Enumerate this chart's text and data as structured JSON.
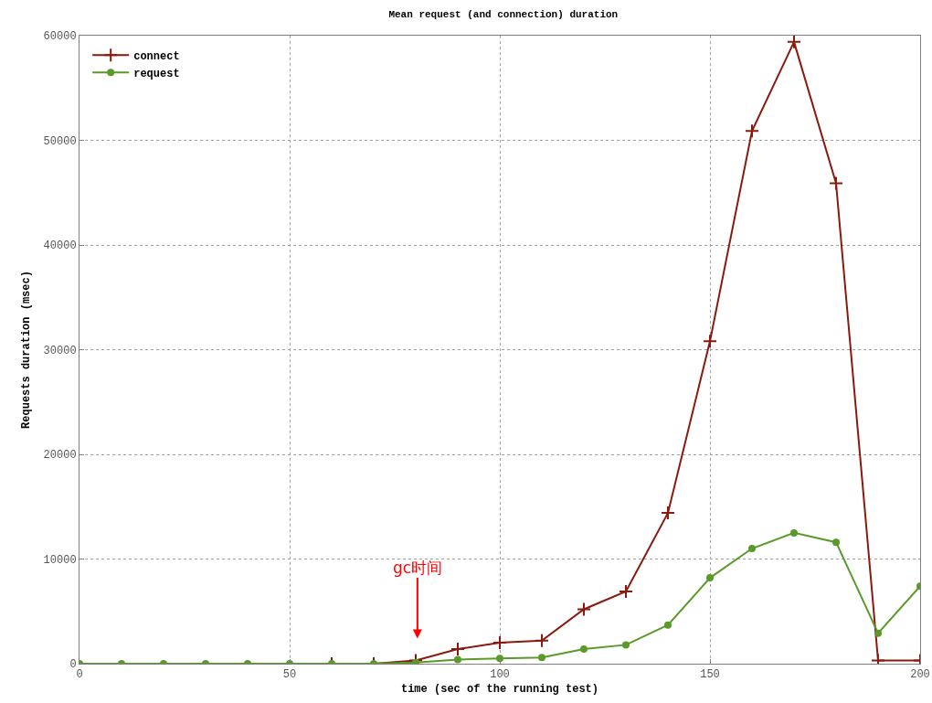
{
  "chart_data": {
    "type": "line",
    "title": "Mean request (and connection) duration",
    "xlabel": "time (sec of the running test)",
    "ylabel": "Requests duration (msec)",
    "x": [
      0,
      10,
      20,
      30,
      40,
      50,
      60,
      70,
      80,
      90,
      100,
      110,
      120,
      130,
      140,
      150,
      160,
      170,
      180,
      190,
      200
    ],
    "series": [
      {
        "name": "connect",
        "color": "#8b1a0e",
        "marker": "cross",
        "values": [
          null,
          null,
          null,
          null,
          null,
          null,
          0,
          0,
          300,
          1400,
          2000,
          2200,
          5200,
          6900,
          14400,
          30800,
          50900,
          59400,
          45900,
          300,
          300
        ]
      },
      {
        "name": "request",
        "color": "#5a9a2a",
        "marker": "circle",
        "values": [
          0,
          0,
          0,
          0,
          0,
          0,
          0,
          0,
          100,
          400,
          500,
          600,
          1400,
          1800,
          3700,
          8200,
          11000,
          12500,
          11600,
          2900,
          7400
        ]
      }
    ],
    "xlim": [
      0,
      200
    ],
    "xticks": [
      0,
      50,
      100,
      150,
      200
    ],
    "ylim": [
      0,
      60000
    ],
    "yticks": [
      0,
      10000,
      20000,
      30000,
      40000,
      50000,
      60000
    ],
    "grid": true,
    "legend": "top left",
    "line_style": "solid",
    "annotations": [
      "gc时间"
    ]
  }
}
